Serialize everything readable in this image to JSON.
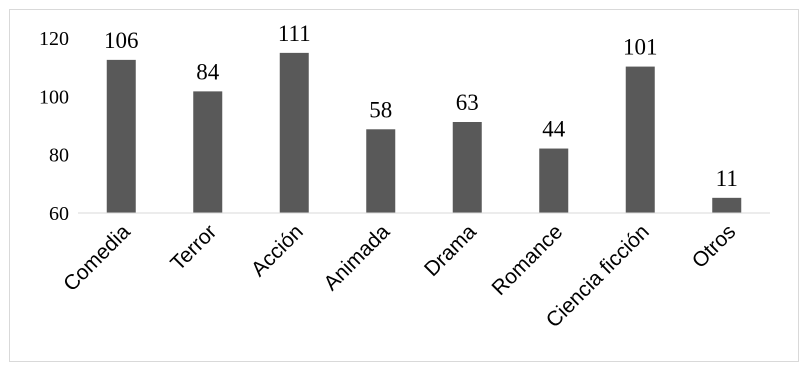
{
  "chart_data": {
    "type": "bar",
    "title": "",
    "xlabel": "",
    "ylabel": "",
    "categories": [
      "Comedia",
      "Terror",
      "Acción",
      "Animada",
      "Drama",
      "Romance",
      "Ciencia ficción",
      "Otros"
    ],
    "bar_heights": [
      112.5,
      101.7,
      114.9,
      88.7,
      91.2,
      82.1,
      110.2,
      65.2
    ],
    "data_labels": [
      "106",
      "84",
      "111",
      "58",
      "63",
      "44",
      "101",
      "11"
    ],
    "y_axis_labels": [
      "60",
      "80",
      "100",
      "120"
    ],
    "ylim": [
      60,
      120
    ],
    "grid": false,
    "legend": "none",
    "colors": {
      "bar": "#595959",
      "axis": "#d9d9d9",
      "border": "#d9d9d9"
    }
  }
}
